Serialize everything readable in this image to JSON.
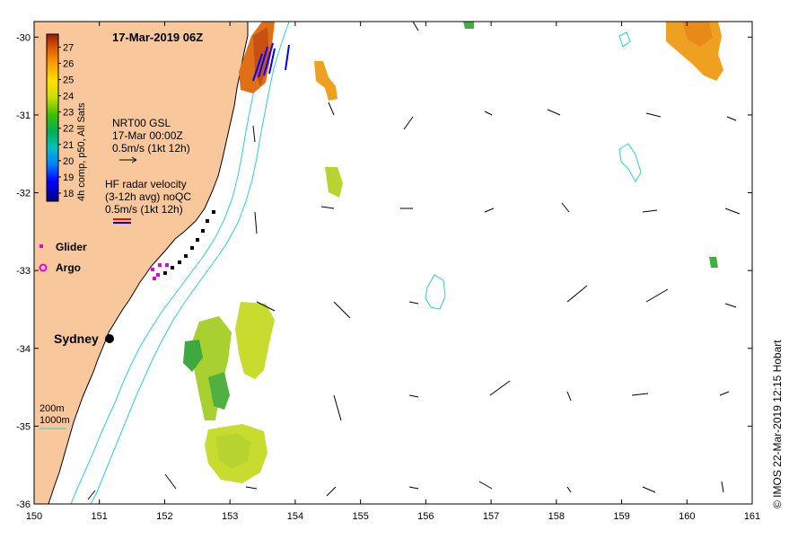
{
  "title": "17-Mar-2019 06Z",
  "credit": "© IMOS 22-Mar-2019 12:15 Hobart",
  "colorbar": {
    "label": "4h comp, p50, All Sats",
    "ticks": [
      27,
      26,
      25,
      24,
      23,
      22,
      21,
      20,
      19,
      18
    ],
    "range": [
      17.5,
      27.8
    ]
  },
  "gsl_legend": [
    "NRT00 GSL",
    "17-Mar 00:00Z",
    "0.5m/s (1kt 12h)"
  ],
  "radar_legend": [
    "HF radar velocity",
    "(3-12h avg) noQC",
    "0.5m/s (1kt 12h)"
  ],
  "glider_label": "Glider",
  "argo_label": "Argo",
  "city_label": "Sydney",
  "contour_labels": [
    "200m",
    "1000m"
  ],
  "colors": {
    "land": "#f9c79c",
    "contour": "#33cccc",
    "glider": "#e000e0",
    "radar_red": "#ff0000",
    "radar_blue": "#0000ff"
  },
  "axes": {
    "x_ticks": [
      "150",
      "151",
      "152",
      "153",
      "154",
      "155",
      "156",
      "157",
      "158",
      "159",
      "160",
      "161"
    ],
    "y_ticks": [
      "-30",
      "-31",
      "-32",
      "-33",
      "-34",
      "-35",
      "-36"
    ],
    "xlim": [
      150,
      161
    ],
    "ylim": [
      -36,
      -29.8
    ]
  }
}
